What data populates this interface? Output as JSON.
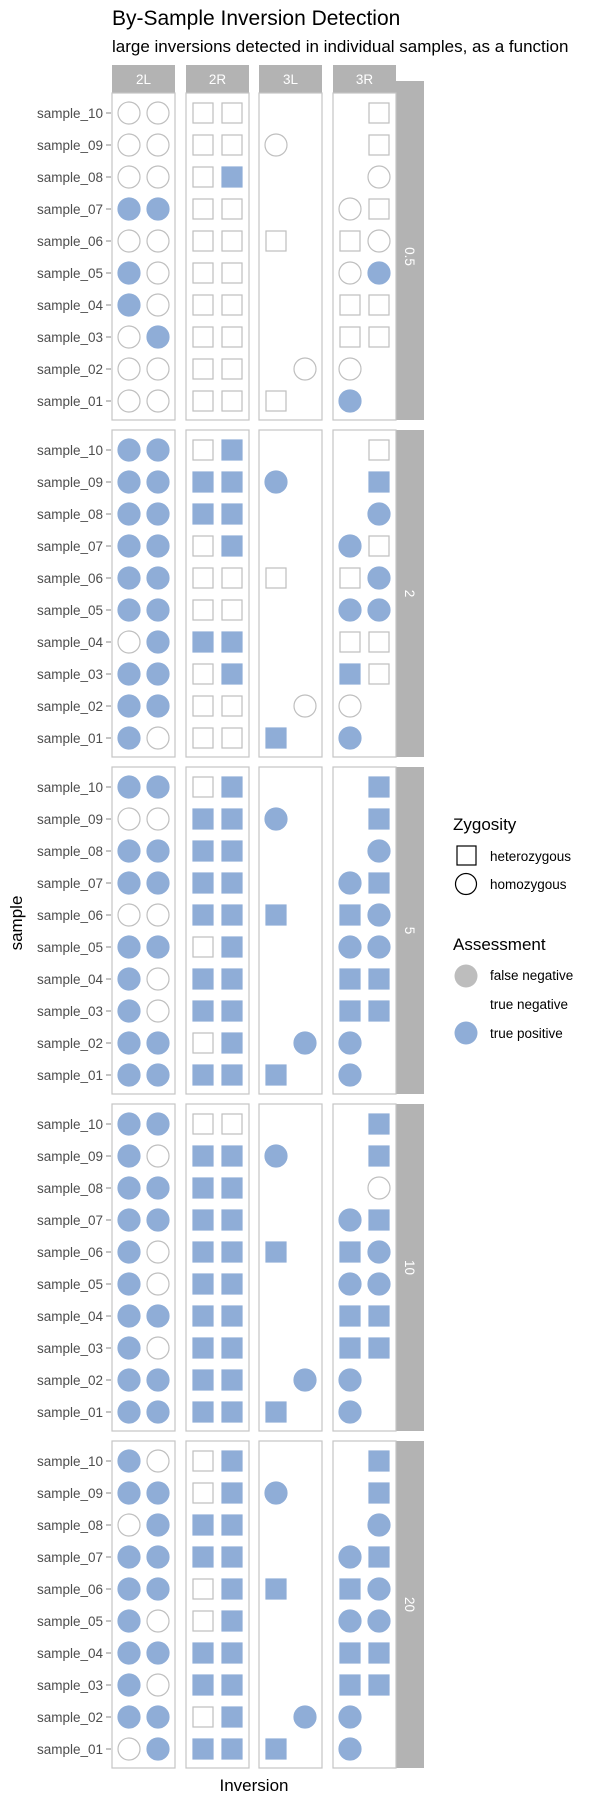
{
  "chart_data": {
    "type": "scatter",
    "title": "By-Sample Inversion Detection",
    "subtitle": "large inversions detected in individual samples, as a function",
    "xlabel": "Inversion",
    "ylabel": "sample",
    "facet_columns": [
      "2L",
      "2R",
      "3L",
      "3R"
    ],
    "facet_rows": [
      "0.5",
      "2",
      "5",
      "10",
      "20"
    ],
    "samples": [
      "sample_10",
      "sample_09",
      "sample_08",
      "sample_07",
      "sample_06",
      "sample_05",
      "sample_04",
      "sample_03",
      "sample_02",
      "sample_01"
    ],
    "legend": {
      "placement": "right",
      "zygosity_title": "Zygosity",
      "zygosity": [
        {
          "label": "heterozygous",
          "shape": "square"
        },
        {
          "label": "homozygous",
          "shape": "circle"
        }
      ],
      "assessment_title": "Assessment",
      "assessment": [
        {
          "code": "FN",
          "label": "false negative",
          "color": "#bdbdbd"
        },
        {
          "code": "TN",
          "label": "true negative",
          "color": "#ffffff"
        },
        {
          "code": "TP",
          "label": "true positive",
          "color": "#8fadd7"
        }
      ]
    },
    "zygosity_by_inversion": {
      "2L": [
        [
          "o",
          "o"
        ],
        [
          "o",
          "o"
        ],
        [
          "o",
          "o"
        ],
        [
          "o",
          "o"
        ],
        [
          "o",
          "o"
        ],
        [
          "o",
          "o"
        ],
        [
          "o",
          "o"
        ],
        [
          "o",
          "o"
        ],
        [
          "o",
          "o"
        ],
        [
          "o",
          "o"
        ]
      ],
      "2R": [
        [
          "s",
          "s"
        ],
        [
          "s",
          "s"
        ],
        [
          "s",
          "s"
        ],
        [
          "s",
          "s"
        ],
        [
          "s",
          "s"
        ],
        [
          "s",
          "s"
        ],
        [
          "s",
          "s"
        ],
        [
          "s",
          "s"
        ],
        [
          "s",
          "s"
        ],
        [
          "s",
          "s"
        ]
      ],
      "3L": [
        [
          null,
          null
        ],
        [
          "o",
          null
        ],
        [
          null,
          null
        ],
        [
          null,
          null
        ],
        [
          "s",
          null
        ],
        [
          null,
          null
        ],
        [
          null,
          null
        ],
        [
          null,
          null
        ],
        [
          null,
          "o"
        ],
        [
          "s",
          null
        ]
      ],
      "3R": [
        [
          null,
          "s"
        ],
        [
          null,
          "s"
        ],
        [
          null,
          "o"
        ],
        [
          "o",
          "s"
        ],
        [
          "s",
          "o"
        ],
        [
          "o",
          "o"
        ],
        [
          "s",
          "s"
        ],
        [
          "s",
          "s"
        ],
        [
          "o",
          null
        ],
        [
          "o",
          null
        ]
      ]
    },
    "zygosity_codes": {
      "o": "homozygous",
      "s": "heterozygous"
    },
    "assessment_by_row": {
      "0.5": {
        "2L": [
          [
            "TN",
            "TN"
          ],
          [
            "TN",
            "TN"
          ],
          [
            "TN",
            "TN"
          ],
          [
            "TP",
            "TP"
          ],
          [
            "TN",
            "TN"
          ],
          [
            "TP",
            "TN"
          ],
          [
            "TP",
            "TN"
          ],
          [
            "TN",
            "TP"
          ],
          [
            "TN",
            "TN"
          ],
          [
            "TN",
            "TN"
          ]
        ],
        "2R": [
          [
            "TN",
            "TN"
          ],
          [
            "TN",
            "TN"
          ],
          [
            "TN",
            "TP"
          ],
          [
            "TN",
            "TN"
          ],
          [
            "TN",
            "TN"
          ],
          [
            "TN",
            "TN"
          ],
          [
            "TN",
            "TN"
          ],
          [
            "TN",
            "TN"
          ],
          [
            "TN",
            "TN"
          ],
          [
            "TN",
            "TN"
          ]
        ],
        "3L": [
          [
            null,
            null
          ],
          [
            "TN",
            null
          ],
          [
            null,
            null
          ],
          [
            null,
            null
          ],
          [
            "TN",
            null
          ],
          [
            null,
            null
          ],
          [
            null,
            null
          ],
          [
            null,
            null
          ],
          [
            null,
            "TN"
          ],
          [
            "TN",
            null
          ]
        ],
        "3R": [
          [
            null,
            "TN"
          ],
          [
            null,
            "TN"
          ],
          [
            null,
            "TN"
          ],
          [
            "TN",
            "TN"
          ],
          [
            "TN",
            "TN"
          ],
          [
            "TN",
            "TP"
          ],
          [
            "TN",
            "TN"
          ],
          [
            "TN",
            "TN"
          ],
          [
            "TN",
            null
          ],
          [
            "TP",
            null
          ]
        ]
      },
      "2": {
        "2L": [
          [
            "TP",
            "TP"
          ],
          [
            "TP",
            "TP"
          ],
          [
            "TP",
            "TP"
          ],
          [
            "TP",
            "TP"
          ],
          [
            "TP",
            "TP"
          ],
          [
            "TP",
            "TP"
          ],
          [
            "TN",
            "TP"
          ],
          [
            "TP",
            "TP"
          ],
          [
            "TP",
            "TP"
          ],
          [
            "TP",
            "TN"
          ]
        ],
        "2R": [
          [
            "TN",
            "TP"
          ],
          [
            "TP",
            "TP"
          ],
          [
            "TP",
            "TP"
          ],
          [
            "TN",
            "TP"
          ],
          [
            "TN",
            "TN"
          ],
          [
            "TN",
            "TN"
          ],
          [
            "TP",
            "TP"
          ],
          [
            "TN",
            "TP"
          ],
          [
            "TN",
            "TN"
          ],
          [
            "TN",
            "TN"
          ]
        ],
        "3L": [
          [
            null,
            null
          ],
          [
            "TP",
            null
          ],
          [
            null,
            null
          ],
          [
            null,
            null
          ],
          [
            "TN",
            null
          ],
          [
            null,
            null
          ],
          [
            null,
            null
          ],
          [
            null,
            null
          ],
          [
            null,
            "TN"
          ],
          [
            "TP",
            null
          ]
        ],
        "3R": [
          [
            null,
            "TN"
          ],
          [
            null,
            "TP"
          ],
          [
            null,
            "TP"
          ],
          [
            "TP",
            "TN"
          ],
          [
            "TN",
            "TP"
          ],
          [
            "TP",
            "TP"
          ],
          [
            "TN",
            "TN"
          ],
          [
            "TP",
            "TN"
          ],
          [
            "TN",
            null
          ],
          [
            "TP",
            null
          ]
        ]
      },
      "5": {
        "2L": [
          [
            "TP",
            "TP"
          ],
          [
            "TN",
            "TN"
          ],
          [
            "TP",
            "TP"
          ],
          [
            "TP",
            "TP"
          ],
          [
            "TN",
            "TN"
          ],
          [
            "TP",
            "TP"
          ],
          [
            "TP",
            "TN"
          ],
          [
            "TP",
            "TN"
          ],
          [
            "TP",
            "TP"
          ],
          [
            "TP",
            "TP"
          ]
        ],
        "2R": [
          [
            "TN",
            "TP"
          ],
          [
            "TP",
            "TP"
          ],
          [
            "TP",
            "TP"
          ],
          [
            "TP",
            "TP"
          ],
          [
            "TP",
            "TP"
          ],
          [
            "TN",
            "TP"
          ],
          [
            "TP",
            "TP"
          ],
          [
            "TP",
            "TP"
          ],
          [
            "TN",
            "TP"
          ],
          [
            "TP",
            "TP"
          ]
        ],
        "3L": [
          [
            null,
            null
          ],
          [
            "TP",
            null
          ],
          [
            null,
            null
          ],
          [
            null,
            null
          ],
          [
            "TP",
            null
          ],
          [
            null,
            null
          ],
          [
            null,
            null
          ],
          [
            null,
            null
          ],
          [
            null,
            "TP"
          ],
          [
            "TP",
            null
          ]
        ],
        "3R": [
          [
            null,
            "TP"
          ],
          [
            null,
            "TP"
          ],
          [
            null,
            "TP"
          ],
          [
            "TP",
            "TP"
          ],
          [
            "TP",
            "TP"
          ],
          [
            "TP",
            "TP"
          ],
          [
            "TP",
            "TP"
          ],
          [
            "TP",
            "TP"
          ],
          [
            "TP",
            null
          ],
          [
            "TP",
            null
          ]
        ]
      },
      "10": {
        "2L": [
          [
            "TP",
            "TP"
          ],
          [
            "TP",
            "TN"
          ],
          [
            "TP",
            "TP"
          ],
          [
            "TP",
            "TP"
          ],
          [
            "TP",
            "TN"
          ],
          [
            "TP",
            "TN"
          ],
          [
            "TP",
            "TP"
          ],
          [
            "TP",
            "TN"
          ],
          [
            "TP",
            "TP"
          ],
          [
            "TP",
            "TP"
          ]
        ],
        "2R": [
          [
            "TN",
            "TN"
          ],
          [
            "TP",
            "TP"
          ],
          [
            "TP",
            "TP"
          ],
          [
            "TP",
            "TP"
          ],
          [
            "TP",
            "TP"
          ],
          [
            "TP",
            "TP"
          ],
          [
            "TP",
            "TP"
          ],
          [
            "TP",
            "TP"
          ],
          [
            "TP",
            "TP"
          ],
          [
            "TP",
            "TP"
          ]
        ],
        "3L": [
          [
            null,
            null
          ],
          [
            "TP",
            null
          ],
          [
            null,
            null
          ],
          [
            null,
            null
          ],
          [
            "TP",
            null
          ],
          [
            null,
            null
          ],
          [
            null,
            null
          ],
          [
            null,
            null
          ],
          [
            null,
            "TP"
          ],
          [
            "TP",
            null
          ]
        ],
        "3R": [
          [
            null,
            "TP"
          ],
          [
            null,
            "TP"
          ],
          [
            null,
            "TN"
          ],
          [
            "TP",
            "TP"
          ],
          [
            "TP",
            "TP"
          ],
          [
            "TP",
            "TP"
          ],
          [
            "TP",
            "TP"
          ],
          [
            "TP",
            "TP"
          ],
          [
            "TP",
            null
          ],
          [
            "TP",
            null
          ]
        ]
      },
      "20": {
        "2L": [
          [
            "TP",
            "TN"
          ],
          [
            "TP",
            "TP"
          ],
          [
            "TN",
            "TP"
          ],
          [
            "TP",
            "TP"
          ],
          [
            "TP",
            "TP"
          ],
          [
            "TP",
            "TN"
          ],
          [
            "TP",
            "TP"
          ],
          [
            "TP",
            "TN"
          ],
          [
            "TP",
            "TP"
          ],
          [
            "TN",
            "TP"
          ]
        ],
        "2R": [
          [
            "TN",
            "TP"
          ],
          [
            "TN",
            "TP"
          ],
          [
            "TP",
            "TP"
          ],
          [
            "TP",
            "TP"
          ],
          [
            "TN",
            "TP"
          ],
          [
            "TN",
            "TP"
          ],
          [
            "TP",
            "TP"
          ],
          [
            "TP",
            "TP"
          ],
          [
            "TN",
            "TP"
          ],
          [
            "TP",
            "TP"
          ]
        ],
        "3L": [
          [
            null,
            null
          ],
          [
            "TP",
            null
          ],
          [
            null,
            null
          ],
          [
            null,
            null
          ],
          [
            "TP",
            null
          ],
          [
            null,
            null
          ],
          [
            null,
            null
          ],
          [
            null,
            null
          ],
          [
            null,
            "TP"
          ],
          [
            "TP",
            null
          ]
        ],
        "3R": [
          [
            null,
            "TP"
          ],
          [
            null,
            "TP"
          ],
          [
            null,
            "TP"
          ],
          [
            "TP",
            "TP"
          ],
          [
            "TP",
            "TP"
          ],
          [
            "TP",
            "TP"
          ],
          [
            "TP",
            "TP"
          ],
          [
            "TP",
            "TP"
          ],
          [
            "TP",
            null
          ],
          [
            "TP",
            null
          ]
        ]
      }
    },
    "colors": {
      "strip": "#b3b3b3",
      "panel_border": "#c4c4c4",
      "marker_outline": "#bfbfbf",
      "true_positive": "#8fadd7",
      "false_negative": "#bdbdbd"
    }
  }
}
